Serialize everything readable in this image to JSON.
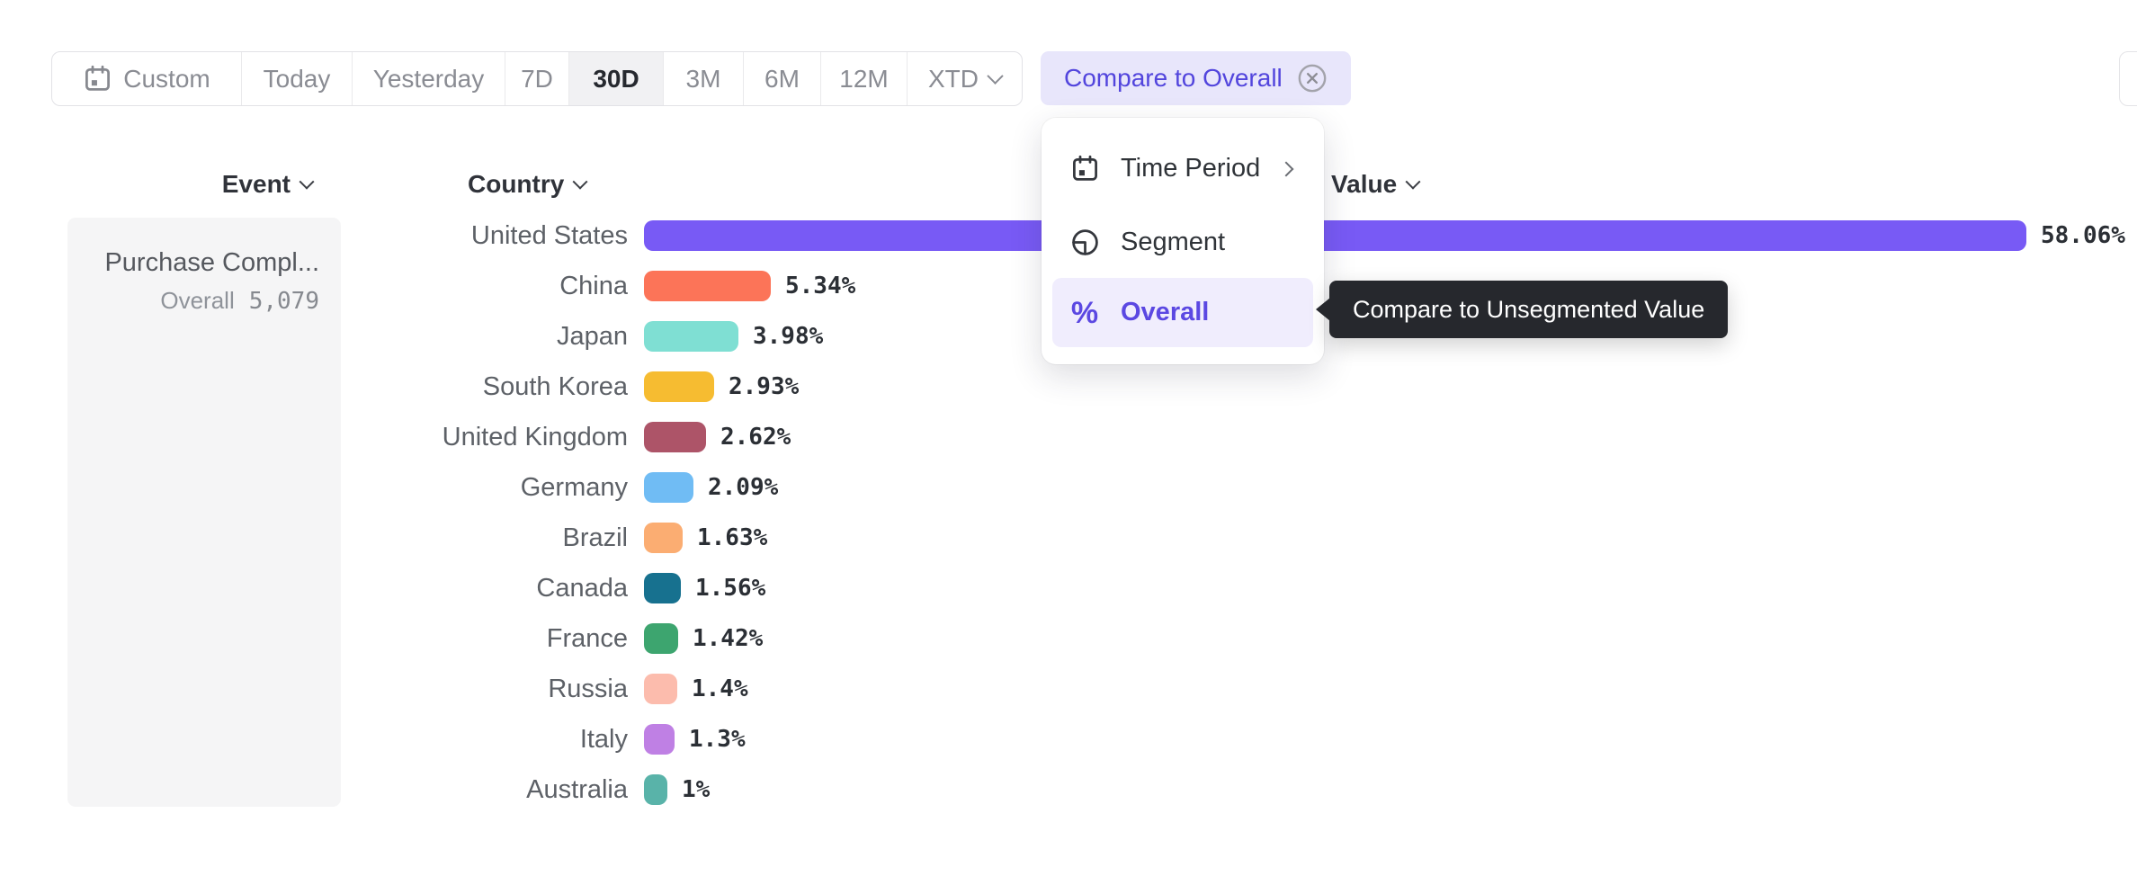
{
  "toolbar": {
    "segments": [
      {
        "label": "Custom",
        "icon": "calendar-icon",
        "selected": false
      },
      {
        "label": "Today",
        "selected": false
      },
      {
        "label": "Yesterday",
        "selected": false
      },
      {
        "label": "7D",
        "selected": false
      },
      {
        "label": "30D",
        "selected": true
      },
      {
        "label": "3M",
        "selected": false
      },
      {
        "label": "6M",
        "selected": false
      },
      {
        "label": "12M",
        "selected": false
      },
      {
        "label": "XTD",
        "selected": false,
        "has_chevron": true
      }
    ],
    "compare_button": {
      "label": "Compare to Overall",
      "close_icon": "circle-x-icon"
    }
  },
  "columns": {
    "event": "Event",
    "country": "Country",
    "value": "Value"
  },
  "event_card": {
    "name": "Purchase Compl...",
    "overall_label": "Overall",
    "overall_value": "5,079"
  },
  "menu": {
    "items": [
      {
        "label": "Time Period",
        "icon": "calendar-icon",
        "has_submenu": true,
        "active": false
      },
      {
        "label": "Segment",
        "icon": "segment-icon",
        "has_submenu": false,
        "active": false
      },
      {
        "label": "Overall",
        "icon": "percent-icon",
        "has_submenu": false,
        "active": true
      }
    ]
  },
  "tooltip": {
    "text": "Compare to Unsegmented Value"
  },
  "chart_data": {
    "type": "bar",
    "orientation": "horizontal",
    "title": "",
    "xlabel": "Value (%)",
    "ylabel": "Country",
    "xlim": [
      0,
      60
    ],
    "grid": false,
    "categories": [
      "United States",
      "China",
      "Japan",
      "South Korea",
      "United Kingdom",
      "Germany",
      "Brazil",
      "Canada",
      "France",
      "Russia",
      "Italy",
      "Australia"
    ],
    "values": [
      58.06,
      5.34,
      3.98,
      2.93,
      2.62,
      2.09,
      1.63,
      1.56,
      1.42,
      1.4,
      1.3,
      1
    ],
    "value_labels": [
      "58.06%",
      "5.34%",
      "3.98%",
      "2.93%",
      "2.62%",
      "2.09%",
      "1.63%",
      "1.56%",
      "1.42%",
      "1.4%",
      "1.3%",
      "1%"
    ],
    "bar_colors": [
      "#785af5",
      "#fc7458",
      "#7fdfd3",
      "#f6bc31",
      "#ad5468",
      "#70bcf4",
      "#fbad72",
      "#17718f",
      "#3da56f",
      "#fcbcad",
      "#bf80e4",
      "#59b3a9"
    ]
  },
  "colors": {
    "accent_purple": "#5245dd",
    "compare_button_bg": "#e8e6fb",
    "menu_active_bg": "#f0edfd",
    "tooltip_bg": "#26282d",
    "selected_segment_bg": "#f1f1f3",
    "card_bg": "#f5f5f6"
  }
}
